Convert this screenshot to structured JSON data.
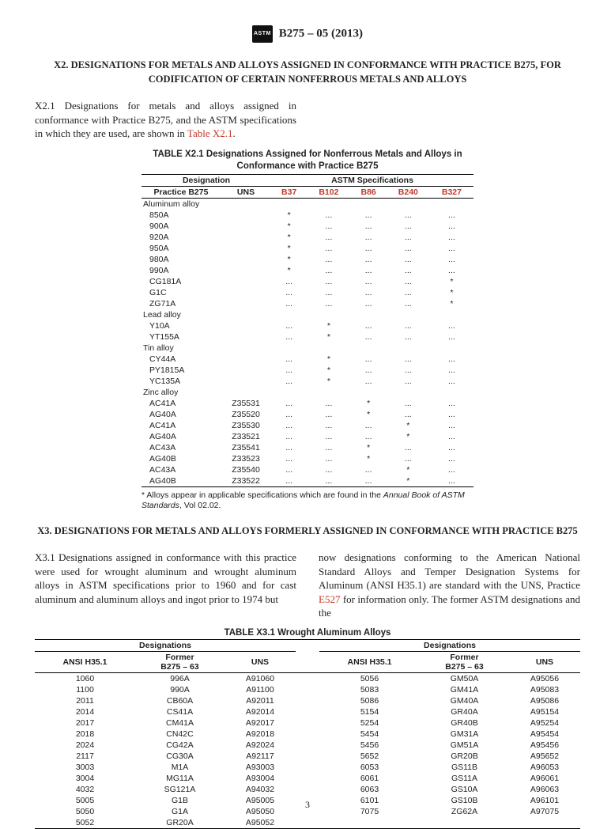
{
  "hdr": {
    "std": "B275 – 05 (2013)"
  },
  "x2": {
    "title": "X2.  DESIGNATIONS FOR METALS AND ALLOYS ASSIGNED IN CONFORMANCE WITH PRACTICE B275, FOR CODIFICATION OF CERTAIN NONFERROUS METALS AND ALLOYS",
    "para_a": "X2.1  Designations for metals and alloys assigned in conformance with Practice B275, and the ASTM specifications in which they are used, are shown in ",
    "tbl_link": "Table X2.1",
    "period": ".",
    "tbl_title": "TABLE X2.1 Designations Assigned for Nonferrous Metals and Alloys in Conformance with Practice B275",
    "col_des": "Designation",
    "col_spec": "ASTM Specifications",
    "col_p": "Practice B275",
    "col_u": "UNS",
    "specs": [
      "B37",
      "B102",
      "B86",
      "B240",
      "B327"
    ],
    "groups": [
      {
        "label": "Aluminum alloy",
        "rows": [
          {
            "p": "850A",
            "u": "",
            "m": [
              "*",
              "...",
              "...",
              "...",
              "..."
            ]
          },
          {
            "p": "900A",
            "u": "",
            "m": [
              "*",
              "...",
              "...",
              "...",
              "..."
            ]
          },
          {
            "p": "920A",
            "u": "",
            "m": [
              "*",
              "...",
              "...",
              "...",
              "..."
            ]
          },
          {
            "p": "950A",
            "u": "",
            "m": [
              "*",
              "...",
              "...",
              "...",
              "..."
            ]
          },
          {
            "p": "980A",
            "u": "",
            "m": [
              "*",
              "...",
              "...",
              "...",
              "..."
            ]
          },
          {
            "p": "990A",
            "u": "",
            "m": [
              "*",
              "...",
              "...",
              "...",
              "..."
            ]
          },
          {
            "p": "CG181A",
            "u": "",
            "m": [
              "...",
              "...",
              "...",
              "...",
              "*"
            ]
          },
          {
            "p": "G1C",
            "u": "",
            "m": [
              "...",
              "...",
              "...",
              "...",
              "*"
            ]
          },
          {
            "p": "ZG71A",
            "u": "",
            "m": [
              "...",
              "...",
              "...",
              "...",
              "*"
            ]
          }
        ]
      },
      {
        "label": "Lead alloy",
        "rows": [
          {
            "p": "Y10A",
            "u": "",
            "m": [
              "...",
              "*",
              "...",
              "...",
              "..."
            ]
          },
          {
            "p": "YT155A",
            "u": "",
            "m": [
              "...",
              "*",
              "...",
              "...",
              "..."
            ]
          }
        ]
      },
      {
        "label": "Tin alloy",
        "rows": [
          {
            "p": "CY44A",
            "u": "",
            "m": [
              "...",
              "*",
              "...",
              "...",
              "..."
            ]
          },
          {
            "p": "PY1815A",
            "u": "",
            "m": [
              "...",
              "*",
              "...",
              "...",
              "..."
            ]
          },
          {
            "p": "YC135A",
            "u": "",
            "m": [
              "...",
              "*",
              "...",
              "...",
              "..."
            ]
          }
        ]
      },
      {
        "label": "Zinc alloy",
        "rows": [
          {
            "p": "AC41A",
            "u": "Z35531",
            "m": [
              "...",
              "...",
              "*",
              "...",
              "..."
            ]
          },
          {
            "p": "AG40A",
            "u": "Z35520",
            "m": [
              "...",
              "...",
              "*",
              "...",
              "..."
            ]
          },
          {
            "p": "AC41A",
            "u": "Z35530",
            "m": [
              "...",
              "...",
              "...",
              "*",
              "..."
            ]
          },
          {
            "p": "AG40A",
            "u": "Z33521",
            "m": [
              "...",
              "...",
              "...",
              "*",
              "..."
            ]
          },
          {
            "p": "AC43A",
            "u": "Z35541",
            "m": [
              "...",
              "...",
              "*",
              "...",
              "..."
            ]
          },
          {
            "p": "AG40B",
            "u": "Z33523",
            "m": [
              "...",
              "...",
              "*",
              "...",
              "..."
            ]
          },
          {
            "p": "AC43A",
            "u": "Z35540",
            "m": [
              "...",
              "...",
              "...",
              "*",
              "..."
            ]
          },
          {
            "p": "AG40B",
            "u": "Z33522",
            "m": [
              "...",
              "...",
              "...",
              "*",
              "..."
            ]
          }
        ]
      }
    ],
    "foot_a": "* Alloys appear in applicable specifications which are found in the ",
    "foot_i": "Annual Book of ASTM Standards",
    "foot_b": ", Vol 02.02."
  },
  "x3": {
    "title": "X3.  DESIGNATIONS FOR METALS AND ALLOYS FORMERLY ASSIGNED IN CONFORMANCE WITH PRACTICE B275",
    "left": "X3.1  Designations assigned in conformance with this practice were used for wrought aluminum and wrought aluminum alloys in ASTM specifications prior to 1960 and for cast aluminum and aluminum alloys and ingot prior to 1974 but",
    "right_a": "now designations conforming to the American National Standard Alloys and Temper Designation Systems for Aluminum (ANSI H35.1) are standard with the UNS, Practice ",
    "right_link": "E527",
    "right_b": " for information only. The former ASTM designations and the",
    "tbl_title": "TABLE X3.1 Wrought Aluminum Alloys",
    "hdr1": "Designations",
    "h_ansi": "ANSI H35.1",
    "h_former": "Former\nB275 – 63",
    "h_uns": "UNS",
    "left_rows": [
      [
        "1060",
        "996A",
        "A91060"
      ],
      [
        "1100",
        "990A",
        "A91100"
      ],
      [
        "2011",
        "CB60A",
        "A92011"
      ],
      [
        "2014",
        "CS41A",
        "A92014"
      ],
      [
        "2017",
        "CM41A",
        "A92017"
      ],
      [
        "2018",
        "CN42C",
        "A92018"
      ],
      [
        "2024",
        "CG42A",
        "A92024"
      ],
      [
        "2117",
        "CG30A",
        "A92117"
      ],
      [
        "3003",
        "M1A",
        "A93003"
      ],
      [
        "3004",
        "MG11A",
        "A93004"
      ],
      [
        "4032",
        "SG121A",
        "A94032"
      ],
      [
        "5005",
        "G1B",
        "A95005"
      ],
      [
        "5050",
        "G1A",
        "A95050"
      ],
      [
        "5052",
        "GR20A",
        "A95052"
      ]
    ],
    "right_rows": [
      [
        "5056",
        "GM50A",
        "A95056"
      ],
      [
        "5083",
        "GM41A",
        "A95083"
      ],
      [
        "5086",
        "GM40A",
        "A95086"
      ],
      [
        "5154",
        "GR40A",
        "A95154"
      ],
      [
        "5254",
        "GR40B",
        "A95254"
      ],
      [
        "5454",
        "GM31A",
        "A95454"
      ],
      [
        "5456",
        "GM51A",
        "A95456"
      ],
      [
        "5652",
        "GR20B",
        "A95652"
      ],
      [
        "6053",
        "GS11B",
        "A96053"
      ],
      [
        "6061",
        "GS11A",
        "A96061"
      ],
      [
        "6063",
        "GS10A",
        "A96063"
      ],
      [
        "6101",
        "GS10B",
        "A96101"
      ],
      [
        "7075",
        "ZG62A",
        "A97075"
      ]
    ]
  },
  "page": "3"
}
